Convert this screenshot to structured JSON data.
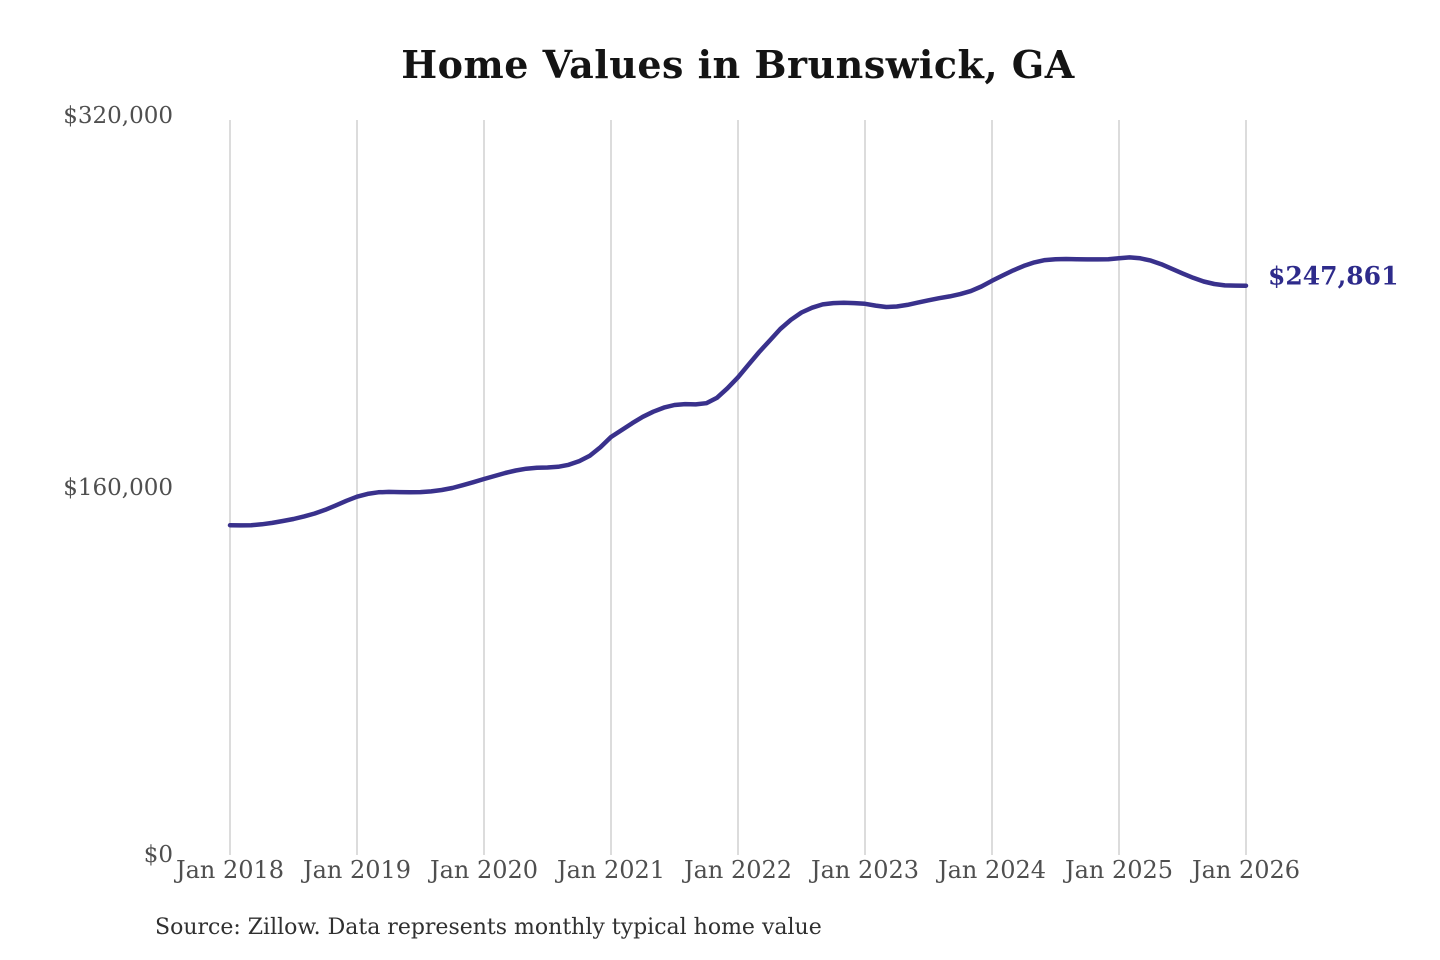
{
  "title": "Home Values in Brunswick, GA",
  "source_note": "Source: Zillow. Data represents monthly typical home value",
  "end_label": "$247,861",
  "colors": {
    "line": "#39318c",
    "end_label": "#2e2b8b",
    "grid": "#c9c9c9",
    "axis_text": "#4f4f4f",
    "title_text": "#141414",
    "source_text": "#303030",
    "background": "#ffffff"
  },
  "chart_data": {
    "type": "line",
    "title": "Home Values in Brunswick, GA",
    "xlabel": "",
    "ylabel": "",
    "x_tick_labels": [
      "Jan 2018",
      "Jan 2019",
      "Jan 2020",
      "Jan 2021",
      "Jan 2022",
      "Jan 2023",
      "Jan 2024",
      "Jan 2025",
      "Jan 2026"
    ],
    "y_ticks": [
      {
        "label": "$0",
        "value": 0
      },
      {
        "label": "$160,000",
        "value": 160000
      },
      {
        "label": "$320,000",
        "value": 320000
      }
    ],
    "ylim": [
      0,
      320000
    ],
    "grid": "vertical-only",
    "legend": "none",
    "series": [
      {
        "name": "Monthly typical home value",
        "x_start": "2018-01",
        "x_end": "2026-01",
        "interval": "monthly",
        "values": [
          143600,
          143500,
          143600,
          144000,
          144600,
          145400,
          146300,
          147400,
          148700,
          150300,
          152200,
          154200,
          156000,
          157200,
          157900,
          158100,
          158000,
          157900,
          158000,
          158300,
          158900,
          159800,
          161000,
          162300,
          163700,
          165000,
          166300,
          167400,
          168200,
          168600,
          168700,
          169000,
          169900,
          171500,
          173800,
          177500,
          182000,
          185000,
          188000,
          190800,
          193000,
          194800,
          195900,
          196300,
          196200,
          196700,
          199000,
          203200,
          208000,
          213500,
          219000,
          224000,
          229000,
          233000,
          236200,
          238300,
          239700,
          240300,
          240400,
          240300,
          240000,
          239200,
          238600,
          238800,
          239500,
          240500,
          241500,
          242400,
          243200,
          244200,
          245500,
          247500,
          250000,
          252300,
          254500,
          256500,
          258000,
          259000,
          259400,
          259500,
          259400,
          259300,
          259300,
          259400,
          259800,
          260200,
          259800,
          258800,
          257200,
          255200,
          253200,
          251300,
          249700,
          248600,
          248000,
          247900,
          247861
        ]
      }
    ],
    "end_value": 247861,
    "end_value_label": "$247,861"
  }
}
